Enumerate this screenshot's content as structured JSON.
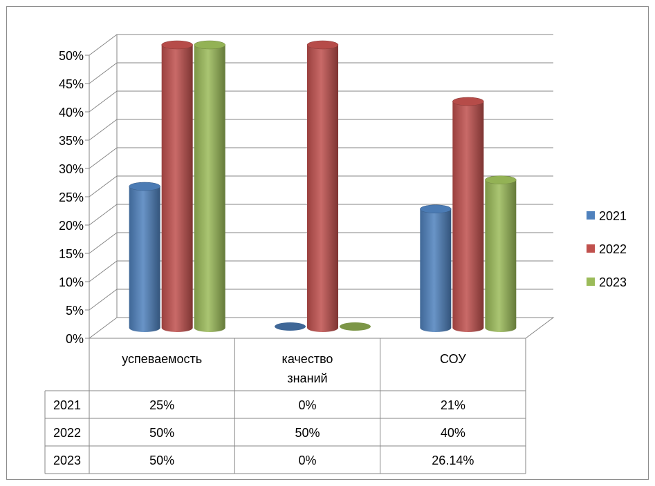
{
  "chart_data": {
    "type": "bar",
    "style": "3d-cylinder",
    "categories": [
      "успеваемость",
      "качество знаний",
      "СОУ"
    ],
    "category_lines": [
      [
        "успеваемость"
      ],
      [
        "качество",
        "знаний"
      ],
      [
        "СОУ"
      ]
    ],
    "series": [
      {
        "name": "2021",
        "values": [
          25,
          0,
          21
        ],
        "color": "#4f81bd",
        "labels": [
          "25%",
          "0%",
          "21%"
        ]
      },
      {
        "name": "2022",
        "values": [
          50,
          50,
          40
        ],
        "color": "#c0504d",
        "labels": [
          "50%",
          "50%",
          "40%"
        ]
      },
      {
        "name": "2023",
        "values": [
          50,
          0,
          26.14
        ],
        "color": "#9bbb59",
        "labels": [
          "50%",
          "0%",
          "26.14%"
        ]
      }
    ],
    "y_ticks": [
      "0%",
      "5%",
      "10%",
      "15%",
      "20%",
      "25%",
      "30%",
      "35%",
      "40%",
      "45%",
      "50%"
    ],
    "ylim": [
      0,
      50
    ],
    "grid": true,
    "legend": "right",
    "data_table": true
  }
}
